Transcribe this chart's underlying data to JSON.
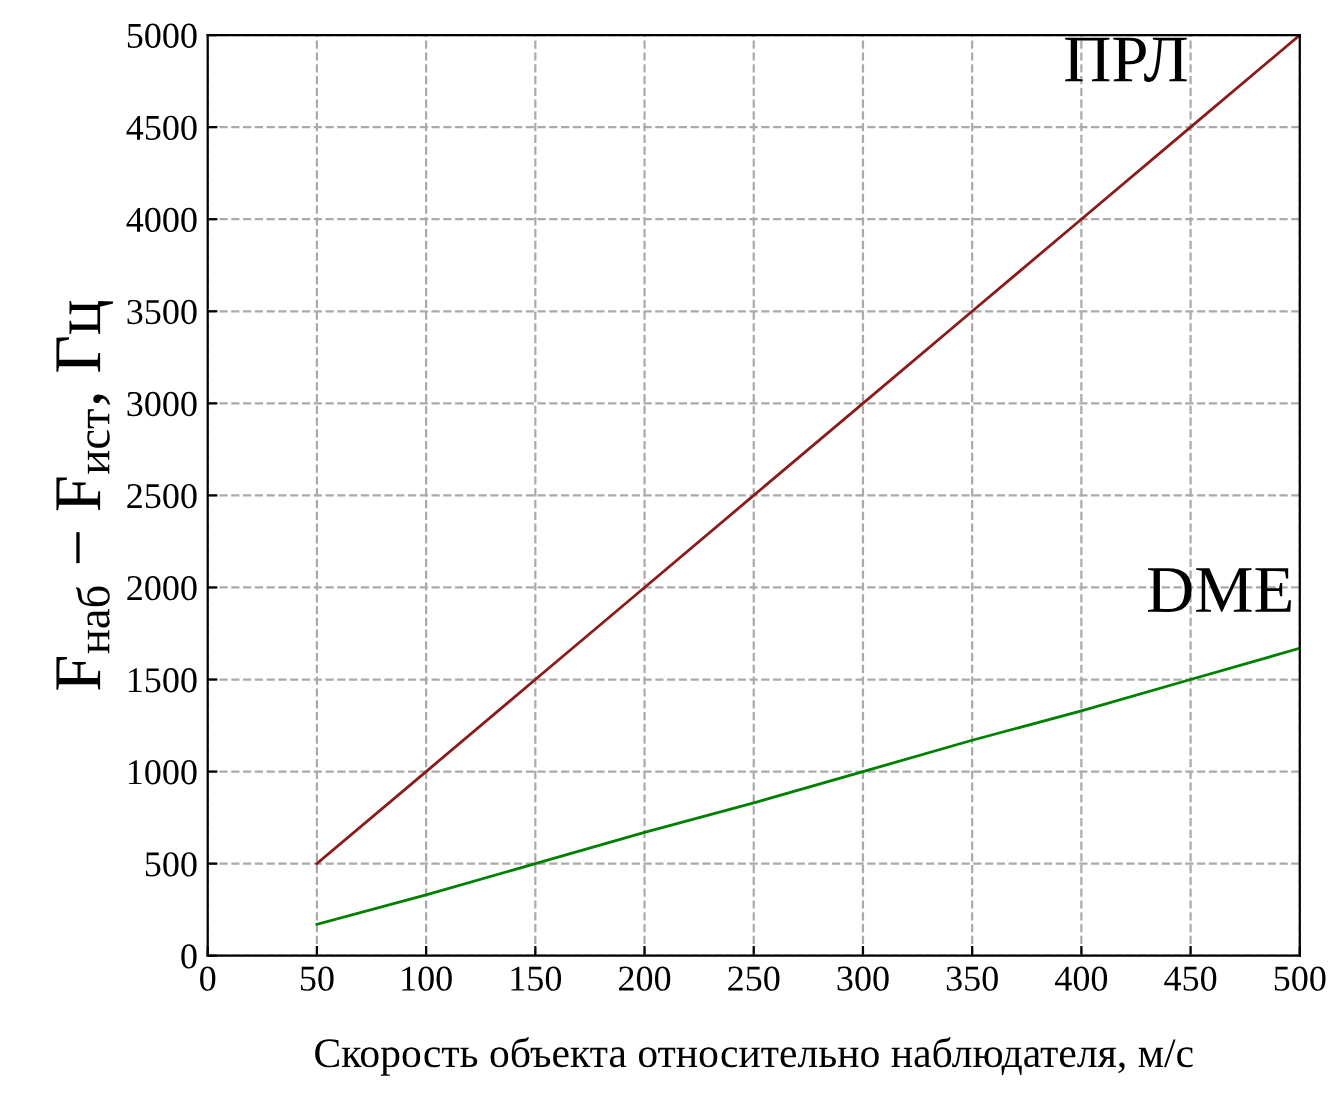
{
  "chart_data": {
    "type": "line",
    "xlabel": "Скорость объекта относительно наблюдателя, м/с",
    "ylabel": "F$_{наб}$ − F$_{ист}$, Гц",
    "x": [
      50,
      100,
      150,
      200,
      250,
      300,
      350,
      400,
      450,
      500
    ],
    "series": [
      {
        "name": "ПРЛ",
        "color": "#8b1a1a",
        "values": [
          500,
          1000,
          1500,
          2000,
          2500,
          3000,
          3500,
          4000,
          4500,
          5000
        ]
      },
      {
        "name": "DME",
        "color": "#008000",
        "values": [
          170,
          330,
          500,
          670,
          830,
          1000,
          1170,
          1330,
          1500,
          1670
        ]
      }
    ],
    "xlim": [
      0,
      500
    ],
    "ylim": [
      0,
      5000
    ],
    "xticks": [
      0,
      50,
      100,
      150,
      200,
      250,
      300,
      350,
      400,
      450,
      500
    ],
    "yticks": [
      0,
      500,
      1000,
      1500,
      2000,
      2500,
      3000,
      3500,
      4000,
      4500,
      5000
    ],
    "grid": true,
    "legend": false,
    "line_style": "solid",
    "marker": "none"
  }
}
